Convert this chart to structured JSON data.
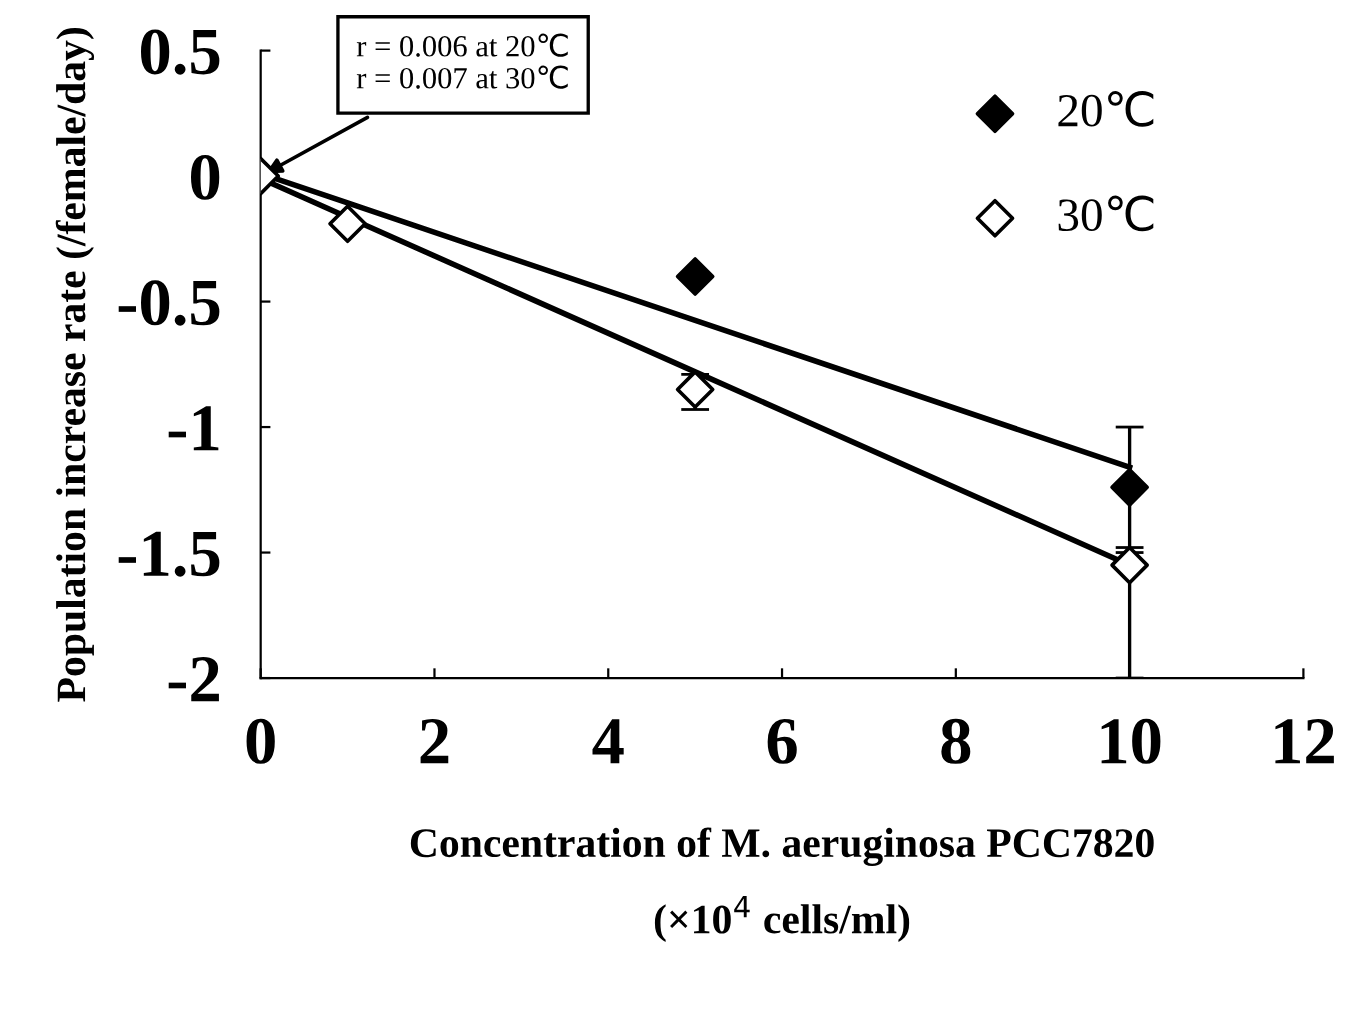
{
  "chart_data": {
    "type": "scatter",
    "xlabel": "Concentration of M. aeruginosa PCC7820\n(×10$^{4}$ cells/ml)",
    "ylabel": "Population increase rate (/female/day)",
    "x": [
      0,
      1,
      5,
      10
    ],
    "series": [
      {
        "name": "20℃",
        "color": "#000000",
        "marker": "diamond",
        "values": [
          null,
          null,
          -0.4,
          -1.24
        ],
        "errors": [
          null,
          null,
          null,
          0.24
        ]
      },
      {
        "name": "30℃",
        "color": "#ffffff",
        "marker": "diamond",
        "values": [
          0,
          -0.19,
          -0.85,
          -1.55
        ],
        "errors": [
          null,
          null,
          [
            -0.93,
            -0.79
          ],
          [
            -2,
            -1.5
          ]
        ]
      },
      {
        "type": "line",
        "color": "#000000",
        "values": [
          0.01,
          -0.107,
          -0.575,
          -1.16
        ]
      },
      {
        "type": "line",
        "color": "#000000",
        "values": [
          -0.01,
          -0.164,
          -0.78,
          -1.55
        ]
      }
    ],
    "annotations": [
      {
        "text": "r = 0.006 at 20℃\nr = 0.007 at 30℃",
        "x": 0,
        "y": 0
      }
    ],
    "xlim": [
      0,
      12
    ],
    "xticks": [
      0,
      2,
      4,
      6,
      8,
      10,
      12
    ],
    "ylim": [
      -2,
      0.5
    ],
    "yticks": [
      0.5,
      0,
      -0.5,
      -1,
      -1.5,
      -2
    ],
    "grid": false,
    "legend": "top right"
  }
}
